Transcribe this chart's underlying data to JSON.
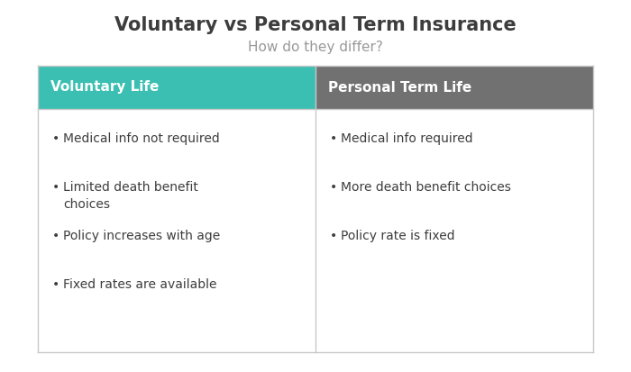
{
  "title": "Voluntary vs Personal Term Insurance",
  "subtitle": "How do they differ?",
  "title_fontsize": 15,
  "subtitle_fontsize": 11,
  "title_color": "#3d3d3d",
  "subtitle_color": "#999999",
  "left_header": "Voluntary Life",
  "right_header": "Personal Term Life",
  "left_header_bg": "#3bbfb2",
  "right_header_bg": "#717171",
  "header_text_color": "#ffffff",
  "header_fontsize": 11,
  "body_bg": "#ffffff",
  "border_color": "#c8c8c8",
  "left_items": [
    "Medical info not required",
    "Limited death benefit\nchoices",
    "Policy increases with age",
    "Fixed rates are available"
  ],
  "right_items": [
    "Medical info required",
    "More death benefit choices",
    "Policy rate is fixed"
  ],
  "body_fontsize": 10,
  "body_text_color": "#3d3d3d",
  "bullet": "•"
}
